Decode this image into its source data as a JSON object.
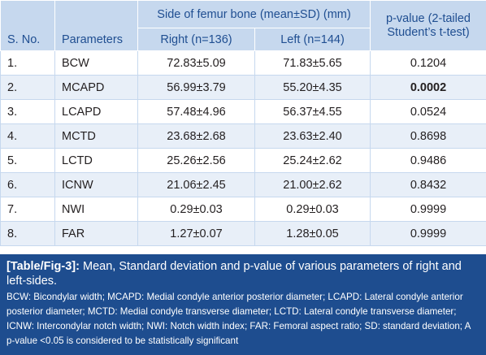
{
  "table": {
    "header": {
      "sno": "S. No.",
      "parameters": "Parameters",
      "group": "Side of femur bone (mean±SD) (mm)",
      "right": "Right (n=136)",
      "left": "Left (n=144)",
      "pvalue": "p-value (2-tailed Student’s t-test)"
    },
    "rows": [
      {
        "sno": "1.",
        "param": "BCW",
        "right": "72.83±5.09",
        "left": "71.83±5.65",
        "p": "0.1204"
      },
      {
        "sno": "2.",
        "param": "MCAPD",
        "right": "56.99±3.79",
        "left": "55.20±4.35",
        "p": "0.0002"
      },
      {
        "sno": "3.",
        "param": "LCAPD",
        "right": "57.48±4.96",
        "left": "56.37±4.55",
        "p": "0.0524"
      },
      {
        "sno": "4.",
        "param": "MCTD",
        "right": "23.68±2.68",
        "left": "23.63±2.40",
        "p": "0.8698"
      },
      {
        "sno": "5.",
        "param": "LCTD",
        "right": "25.26±2.56",
        "left": "25.24±2.62",
        "p": "0.9486"
      },
      {
        "sno": "6.",
        "param": "ICNW",
        "right": "21.06±2.45",
        "left": "21.00±2.62",
        "p": "0.8432"
      },
      {
        "sno": "7.",
        "param": "NWI",
        "right": "0.29±0.03",
        "left": "0.29±0.03",
        "p": "0.9999"
      },
      {
        "sno": "8.",
        "param": "FAR",
        "right": "1.27±0.07",
        "left": "1.28±0.05",
        "p": "0.9999"
      }
    ]
  },
  "caption": {
    "label": "[Table/Fig-3]:",
    "title": "Mean, Standard deviation and p-value of various parameters of right and left-sides.",
    "notes": "BCW: Bicondylar width; MCAPD: Medial condyle anterior posterior diameter; LCAPD: Lateral condyle anterior posterior diameter; MCTD: Medial condyle transverse diameter; LCTD: Lateral condyle transverse diameter; ICNW: Intercondylar notch width; NWI: Notch width index; FAR: Femoral aspect ratio; SD: standard deviation; A p-value <0.05 is considered to be statistically significant"
  },
  "colors": {
    "header_bg": "#c6d8ee",
    "header_text": "#1f4e91",
    "alt_row_bg": "#e8eff8",
    "caption_bg": "#1e4d8f"
  }
}
